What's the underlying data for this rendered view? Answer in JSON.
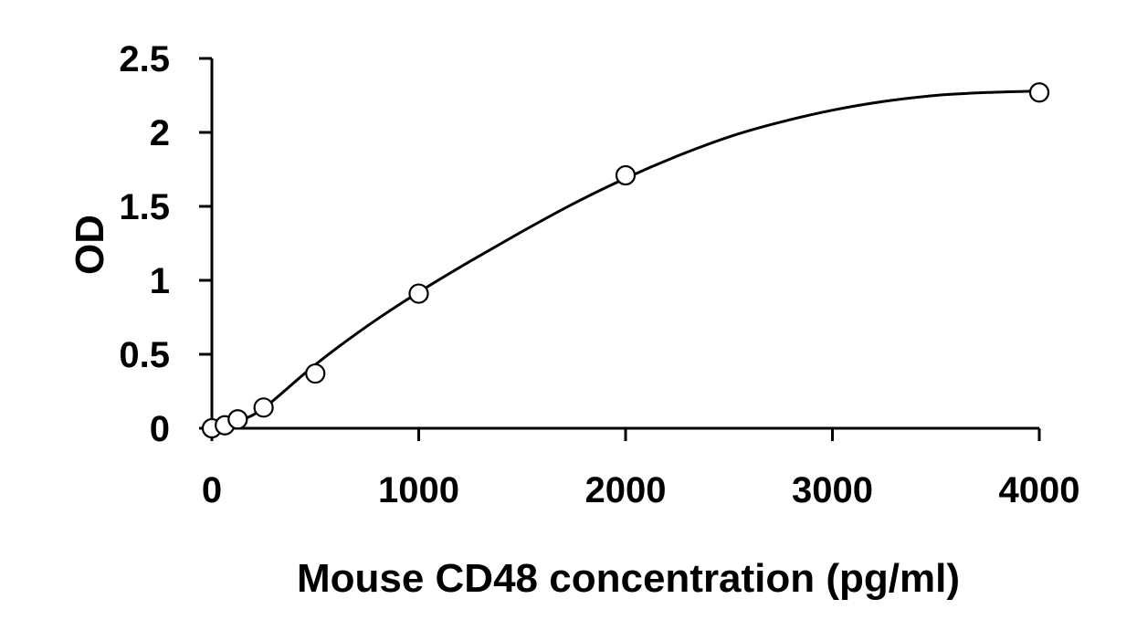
{
  "chart_data": {
    "type": "scatter",
    "title": "",
    "xlabel": "Mouse CD48 concentration (pg/ml)",
    "ylabel": "OD",
    "xlim": [
      0,
      4000
    ],
    "ylim": [
      0,
      2.5
    ],
    "x_ticks": [
      {
        "value": 0,
        "label": "0"
      },
      {
        "value": 1000,
        "label": "1000"
      },
      {
        "value": 2000,
        "label": "2000"
      },
      {
        "value": 3000,
        "label": "3000"
      },
      {
        "value": 4000,
        "label": "4000"
      }
    ],
    "y_ticks": [
      {
        "value": 0,
        "label": "0"
      },
      {
        "value": 0.5,
        "label": "0.5"
      },
      {
        "value": 1,
        "label": "1"
      },
      {
        "value": 1.5,
        "label": "1.5"
      },
      {
        "value": 2,
        "label": "2"
      },
      {
        "value": 2.5,
        "label": "2.5"
      }
    ],
    "grid": false,
    "legend": "none",
    "series": [
      {
        "marker": "open-circle",
        "x": [
          0,
          62.5,
          125,
          250,
          500,
          1000,
          2000,
          4000
        ],
        "y": [
          0.0,
          0.02,
          0.06,
          0.14,
          0.37,
          0.91,
          1.71,
          2.27
        ]
      }
    ],
    "fit_curve": {
      "type": "polynomial",
      "x": [
        62.5,
        125,
        250,
        500,
        750,
        1000,
        1250,
        1500,
        1750,
        2000,
        2250,
        2500,
        2750,
        3000,
        3250,
        3500,
        3750,
        4000
      ],
      "y": [
        0.0,
        0.045,
        0.135,
        0.43,
        0.69,
        0.92,
        1.13,
        1.33,
        1.52,
        1.69,
        1.84,
        1.97,
        2.07,
        2.15,
        2.21,
        2.25,
        2.27,
        2.28
      ]
    }
  }
}
